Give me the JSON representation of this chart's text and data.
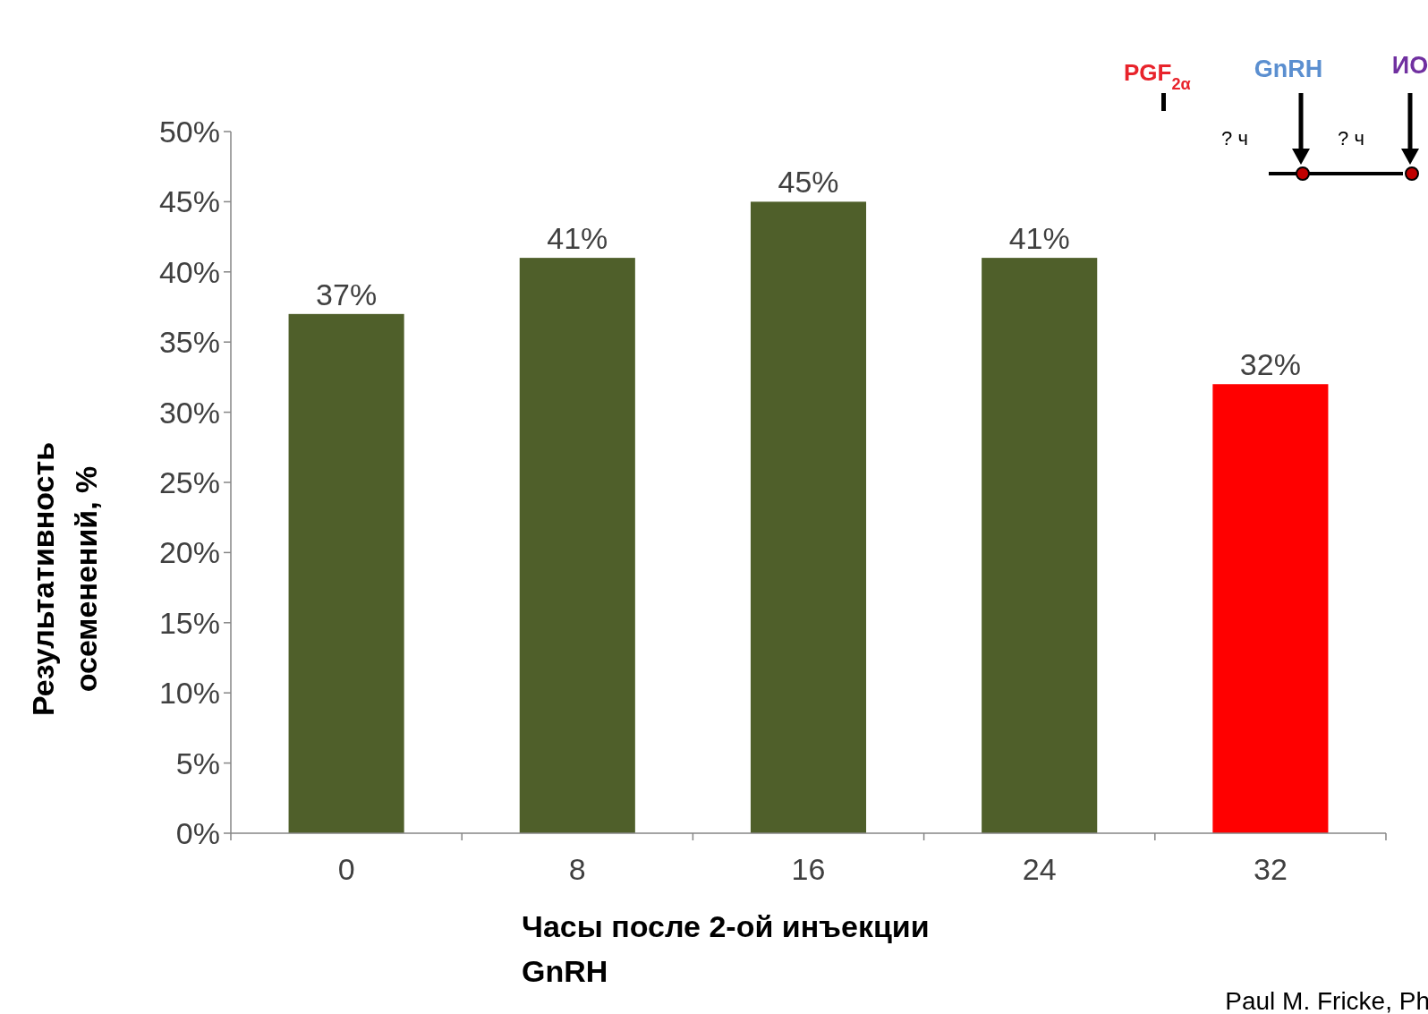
{
  "chart_data": {
    "type": "bar",
    "xlabel": "Часы после 2-ой инъекции GnRH",
    "ylabel": "Результативность осеменений, %",
    "categories": [
      "0",
      "8",
      "16",
      "24",
      "32"
    ],
    "values": [
      37,
      41,
      45,
      41,
      32
    ],
    "colors": [
      "#4f5f2a",
      "#4f5f2a",
      "#4f5f2a",
      "#4f5f2a",
      "#ff0000"
    ],
    "value_labels": [
      "37%",
      "41%",
      "45%",
      "41%",
      "32%"
    ],
    "ylim": [
      0,
      50
    ],
    "yticks": [
      {
        "value": 0,
        "label": "0%"
      },
      {
        "value": 5,
        "label": "5%"
      },
      {
        "value": 10,
        "label": "10%"
      },
      {
        "value": 15,
        "label": "15%"
      },
      {
        "value": 20,
        "label": "20%"
      },
      {
        "value": 25,
        "label": "25%"
      },
      {
        "value": 30,
        "label": "30%"
      },
      {
        "value": 35,
        "label": "35%"
      },
      {
        "value": 40,
        "label": "40%"
      },
      {
        "value": 45,
        "label": "45%"
      },
      {
        "value": 50,
        "label": "50%"
      }
    ],
    "grid": false,
    "annotations": [
      "PGF$_{2α}$",
      "GnRH",
      "ИО",
      "? ч",
      "? ч",
      "Paul M. Fricke, Ph"
    ]
  }
}
